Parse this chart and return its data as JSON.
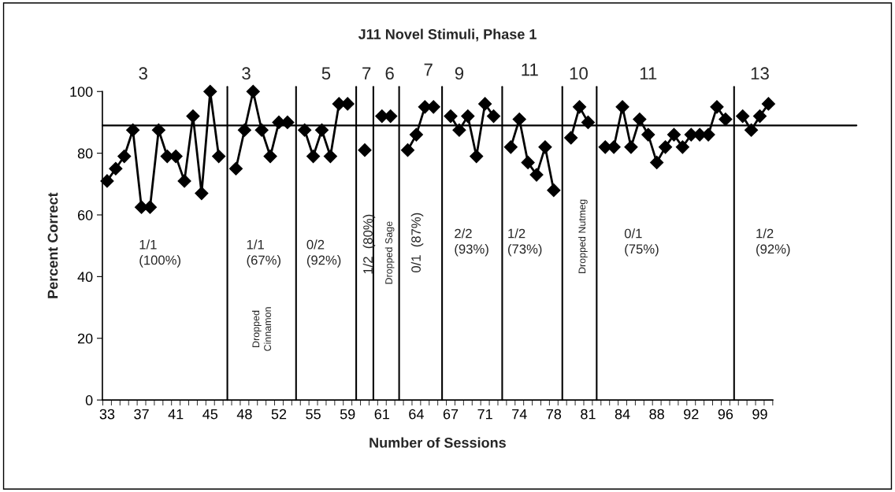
{
  "chart_data": {
    "type": "line",
    "title": "J11 Novel Stimuli, Phase 1",
    "xlabel": "Number of Sessions",
    "ylabel": "Percent Correct",
    "categories": [
      "33",
      null,
      null,
      null,
      "37",
      null,
      null,
      null,
      "41",
      null,
      null,
      null,
      "45",
      null,
      null,
      null,
      "48",
      null,
      null,
      null,
      "52",
      null,
      null,
      null,
      "55",
      null,
      null,
      null,
      "59",
      null,
      null,
      null,
      "61",
      null,
      null,
      null,
      "64",
      null,
      null,
      null,
      "67",
      null,
      null,
      null,
      "71",
      null,
      null,
      null,
      "74",
      null,
      null,
      null,
      "78",
      null,
      null,
      null,
      "81",
      null,
      null,
      null,
      "84",
      null,
      null,
      null,
      "88",
      null,
      null,
      null,
      "92",
      null,
      null,
      null,
      "96",
      null,
      null,
      null,
      "99",
      null
    ],
    "series": [
      {
        "color": "#000000",
        "values": [
          71,
          75,
          79,
          87.5,
          62.5,
          62.5,
          87.5,
          79,
          79,
          71,
          92,
          67,
          100,
          79,
          null,
          75,
          87.5,
          100,
          87.5,
          79,
          90,
          90,
          null,
          87.5,
          79,
          87.5,
          79,
          96,
          96,
          null,
          81,
          null,
          92,
          92,
          null,
          81,
          86,
          95,
          95,
          null,
          92,
          87.5,
          92,
          79,
          96,
          92,
          null,
          82,
          91,
          77,
          73,
          82,
          68,
          null,
          85,
          95,
          90,
          null,
          82,
          82,
          95,
          82,
          91,
          86,
          77,
          82,
          86,
          82,
          86,
          86,
          86,
          95,
          91,
          null,
          92,
          87.5,
          92,
          96
        ]
      }
    ],
    "ylim": [
      0,
      100
    ],
    "yticks": [
      0,
      20,
      40,
      60,
      80,
      100
    ],
    "marker": "diamond",
    "line_style": "solid",
    "ref_lines": [
      {
        "axis": "y",
        "value": 89,
        "color": "#000000"
      }
    ],
    "annotations": [
      "3",
      "3",
      "5",
      "7",
      "6",
      "7",
      "9",
      "11",
      "10",
      "11",
      "13",
      "1/1\n(100%)",
      "1/1\n(67%)",
      "0/2\n(92%)",
      "1/2  (80%)",
      "Dropped Sage",
      "0/1  (87%)",
      "2/2\n(93%)",
      "1/2\n(73%)",
      "Dropped Nutmeg",
      "0/1\n(75%)",
      "1/2\n(92%)",
      "Dropped\nCinnamon"
    ]
  }
}
